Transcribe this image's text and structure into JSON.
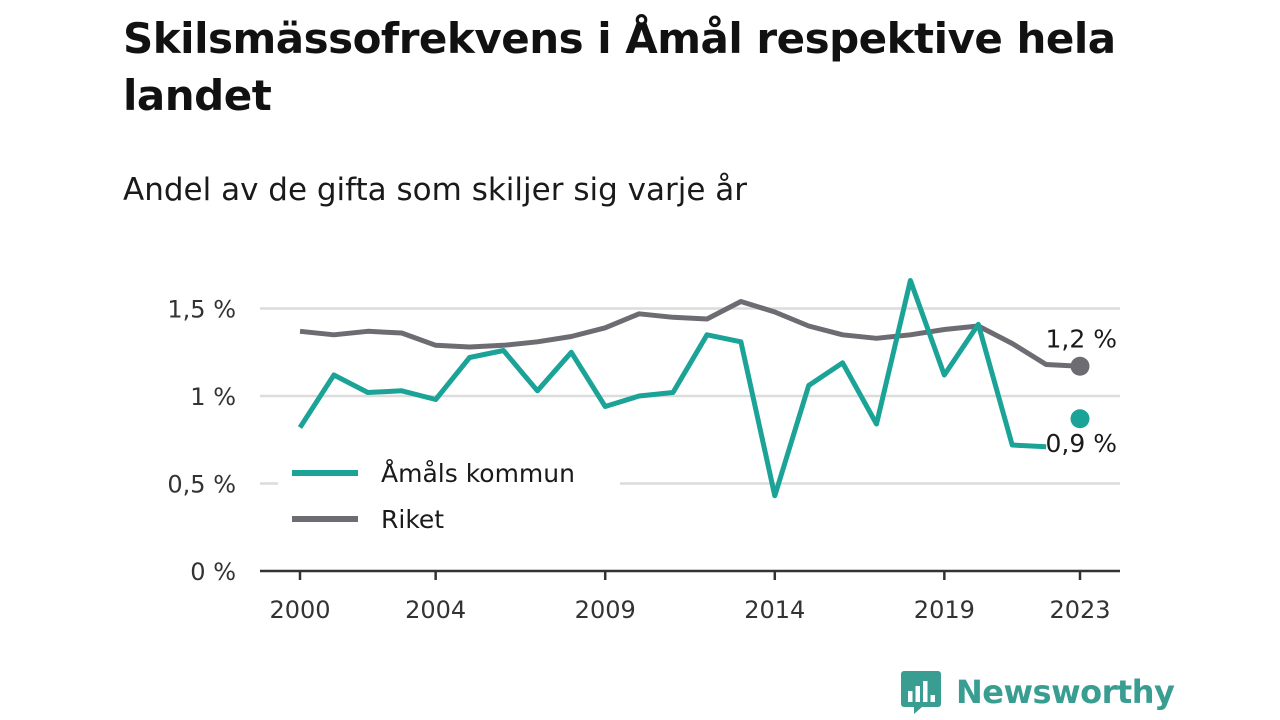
{
  "header": {
    "title": "Skilsmässofrekvens i Åmål respektive hela landet",
    "subtitle": "Andel av de gifta som skiljer sig varje år"
  },
  "chart_data": {
    "type": "line",
    "title": "Skilsmässofrekvens i Åmål respektive hela landet",
    "subtitle": "Andel av de gifta som skiljer sig varje år",
    "xlabel": "",
    "ylabel": "",
    "x": [
      2000,
      2001,
      2002,
      2003,
      2004,
      2005,
      2006,
      2007,
      2008,
      2009,
      2010,
      2011,
      2012,
      2013,
      2014,
      2015,
      2016,
      2017,
      2018,
      2019,
      2020,
      2021,
      2022,
      2023
    ],
    "x_tick_values": [
      2000,
      2004,
      2009,
      2014,
      2019,
      2023
    ],
    "x_tick_labels": [
      "2000",
      "2004",
      "2009",
      "2014",
      "2019",
      "2023"
    ],
    "xlim": [
      1999.3,
      2024.2
    ],
    "y_tick_values": [
      0,
      0.5,
      1,
      1.5
    ],
    "y_tick_labels": [
      "0 %",
      "0,5 %",
      "1 %",
      "1,5 %"
    ],
    "ylim": [
      0,
      1.55
    ],
    "grid": true,
    "legend_position": "bottom-left",
    "series": [
      {
        "name": "Åmåls kommun",
        "color": "#1aa396",
        "values": [
          0.82,
          1.12,
          1.02,
          1.03,
          0.98,
          1.22,
          1.26,
          1.03,
          1.25,
          0.94,
          1.0,
          1.02,
          1.35,
          1.31,
          0.43,
          1.06,
          1.19,
          0.84,
          1.66,
          1.12,
          1.41,
          0.72,
          0.71,
          0.87
        ],
        "end_label": "0,9 %",
        "gap_before_last": true
      },
      {
        "name": "Riket",
        "color": "#6d6c73",
        "values": [
          1.37,
          1.35,
          1.37,
          1.36,
          1.29,
          1.28,
          1.29,
          1.31,
          1.34,
          1.39,
          1.47,
          1.45,
          1.44,
          1.54,
          1.48,
          1.4,
          1.35,
          1.33,
          1.35,
          1.38,
          1.4,
          1.3,
          1.18,
          1.17
        ],
        "end_label": "1,2 %",
        "gap_before_last": false
      }
    ]
  },
  "footer": {
    "brand": "Newsworthy",
    "brand_color": "#3a9d91",
    "brand_icon": "bar-chart-speech-bubble-icon"
  }
}
